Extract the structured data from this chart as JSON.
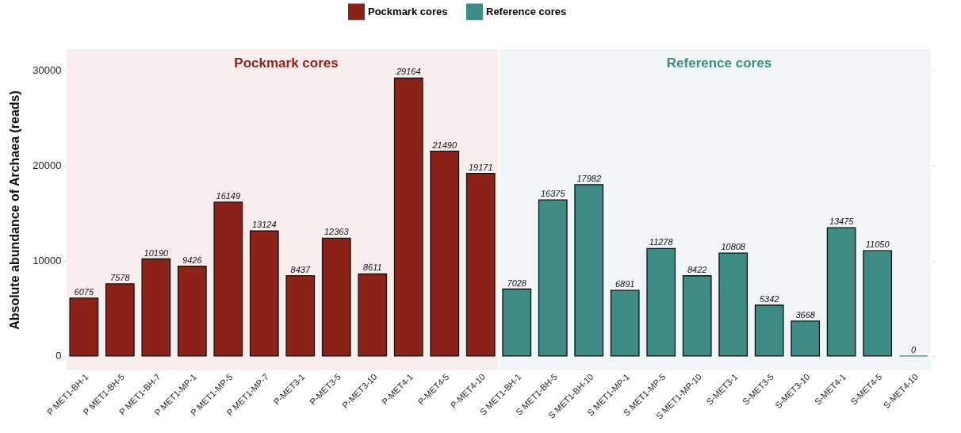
{
  "chart_data": {
    "type": "bar",
    "ylabel": "Absolute abundance of Archaea (reads)",
    "categories": [
      "P MET1-BH-1",
      "P MET1-BH-5",
      "P MET1-BH-7",
      "P MET1-MP-1",
      "P MET1-MP-5",
      "P MET1-MP-7",
      "P-MET3-1",
      "P-MET3-5",
      "P-MET3-10",
      "P-MET4-1",
      "P-MET4-5",
      "P-MET4-10",
      "S MET1-BH-1",
      "S MET1-BH-5",
      "S MET1-BH-10",
      "S MET1-MP-1",
      "S MET1-MP-5",
      "S MET1-MP-10",
      "S-MET3-1",
      "S-MET3-5",
      "S-MET3-10",
      "S-MET4-1",
      "S-MET4-5",
      "S-MET4-10"
    ],
    "series": [
      {
        "name": "Pockmark cores",
        "color": "#8b2318",
        "values": [
          6075,
          7578,
          10190,
          9426,
          16149,
          13124,
          8437,
          12363,
          8611,
          29164,
          21490,
          19171,
          null,
          null,
          null,
          null,
          null,
          null,
          null,
          null,
          null,
          null,
          null,
          null
        ]
      },
      {
        "name": "Reference cores",
        "color": "#3e8a84",
        "values": [
          null,
          null,
          null,
          null,
          null,
          null,
          null,
          null,
          null,
          null,
          null,
          null,
          7028,
          16375,
          17982,
          6891,
          11278,
          8422,
          10808,
          5342,
          3668,
          13475,
          11050,
          0
        ]
      }
    ],
    "bands": [
      {
        "axis": "x",
        "from": "P MET1-BH-1",
        "to": "P-MET4-10",
        "label": "Pockmark cores",
        "color": "#f8eeed"
      },
      {
        "axis": "x",
        "from": "S MET1-BH-1",
        "to": "S-MET4-10",
        "label": "Reference cores",
        "color": "#f1f5f7"
      }
    ],
    "ylim": [
      -1500,
      32200
    ],
    "yticks": [
      0,
      10000,
      20000,
      30000
    ],
    "grid": "y",
    "legend": "top",
    "data_labels": true
  }
}
